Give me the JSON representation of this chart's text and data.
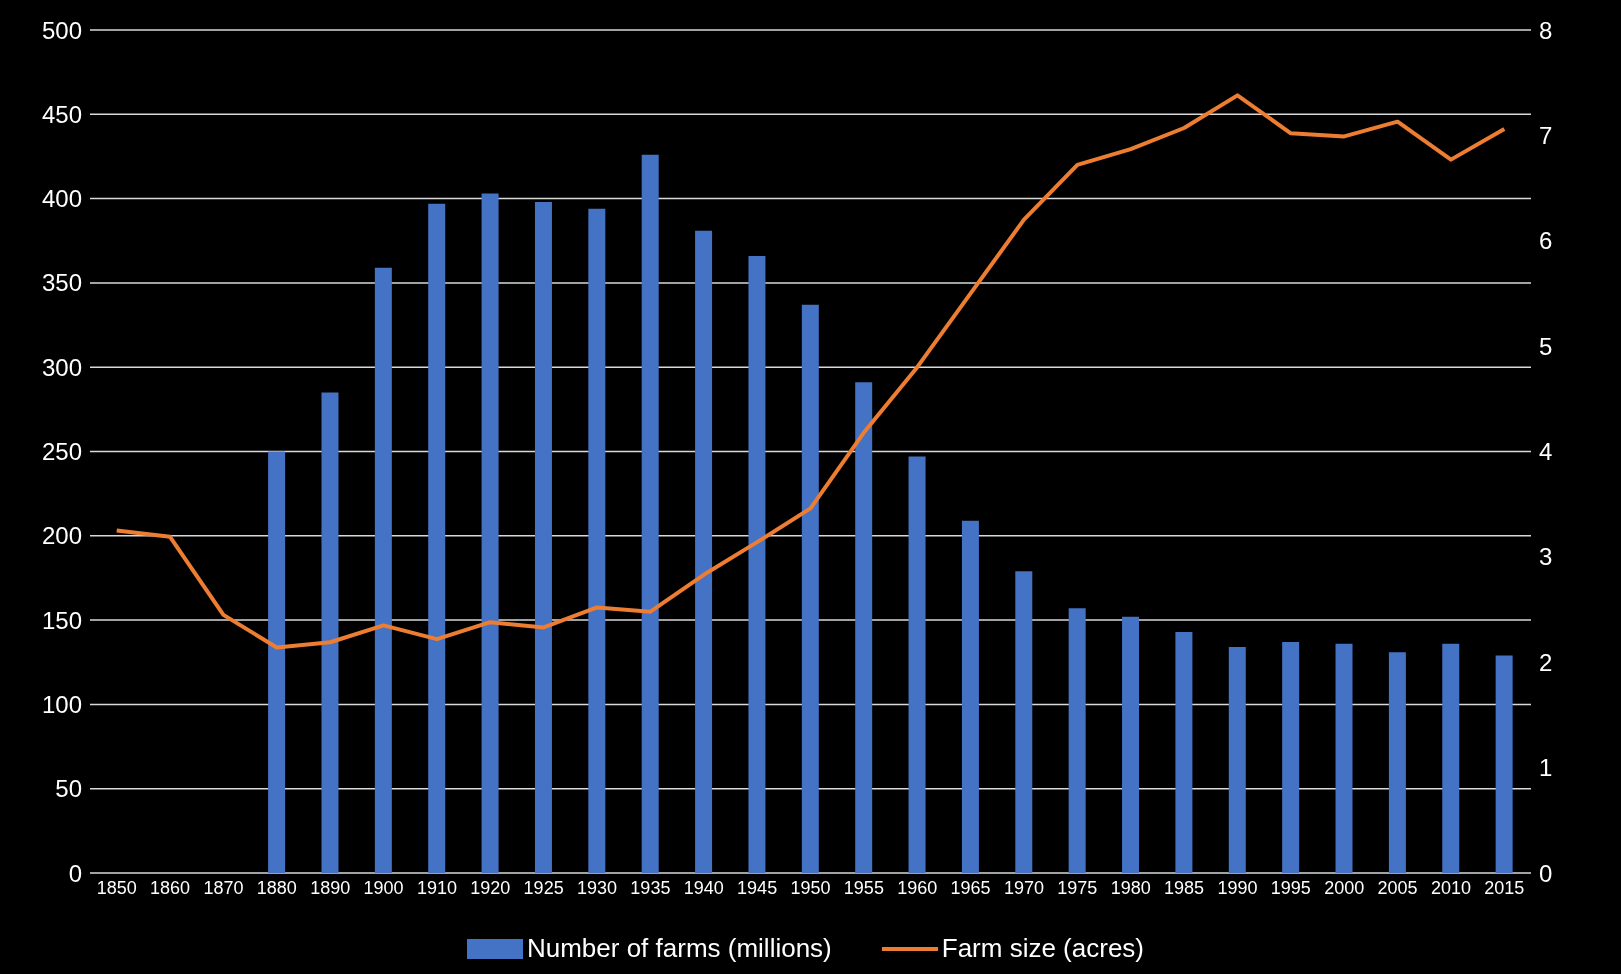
{
  "chart_data": {
    "type": "bar",
    "categories": [
      "1850",
      "1860",
      "1870",
      "1880",
      "1890",
      "1900",
      "1910",
      "1920",
      "1925",
      "1930",
      "1935",
      "1940",
      "1945",
      "1950",
      "1955",
      "1960",
      "1965",
      "1970",
      "1975",
      "1980",
      "1985",
      "1990",
      "1995",
      "2000",
      "2005",
      "2010",
      "2015"
    ],
    "series": [
      {
        "name": "Number of farms (millions)",
        "color": "#4472c4",
        "values": [
          null,
          null,
          null,
          250,
          285,
          359,
          397,
          403,
          398,
          394,
          426,
          381,
          366,
          337,
          291,
          247,
          209,
          179,
          157,
          152,
          143,
          134,
          137,
          136,
          131,
          136,
          129
        ]
      },
      {
        "name": "Farm size (acres)",
        "type": "line",
        "axis": "y2",
        "color": "#ed7d31",
        "values": [
          3.25,
          3.19,
          2.45,
          2.14,
          2.19,
          2.35,
          2.22,
          2.38,
          2.33,
          2.52,
          2.48,
          2.83,
          3.14,
          3.46,
          4.18,
          4.8,
          5.5,
          6.2,
          6.72,
          6.87,
          7.07,
          7.38,
          7.02,
          6.99,
          7.13,
          6.77,
          7.06
        ]
      }
    ],
    "ylim": [
      0,
      500
    ],
    "yticks": [
      0,
      50,
      100,
      150,
      200,
      250,
      300,
      350,
      400,
      450,
      500
    ],
    "y2lim": [
      0,
      8
    ],
    "y2ticks": [
      0,
      1,
      2,
      3,
      4,
      5,
      6,
      7,
      8
    ],
    "grid": "y",
    "legend": "bottom",
    "marker": "none",
    "line_style": "solid"
  }
}
